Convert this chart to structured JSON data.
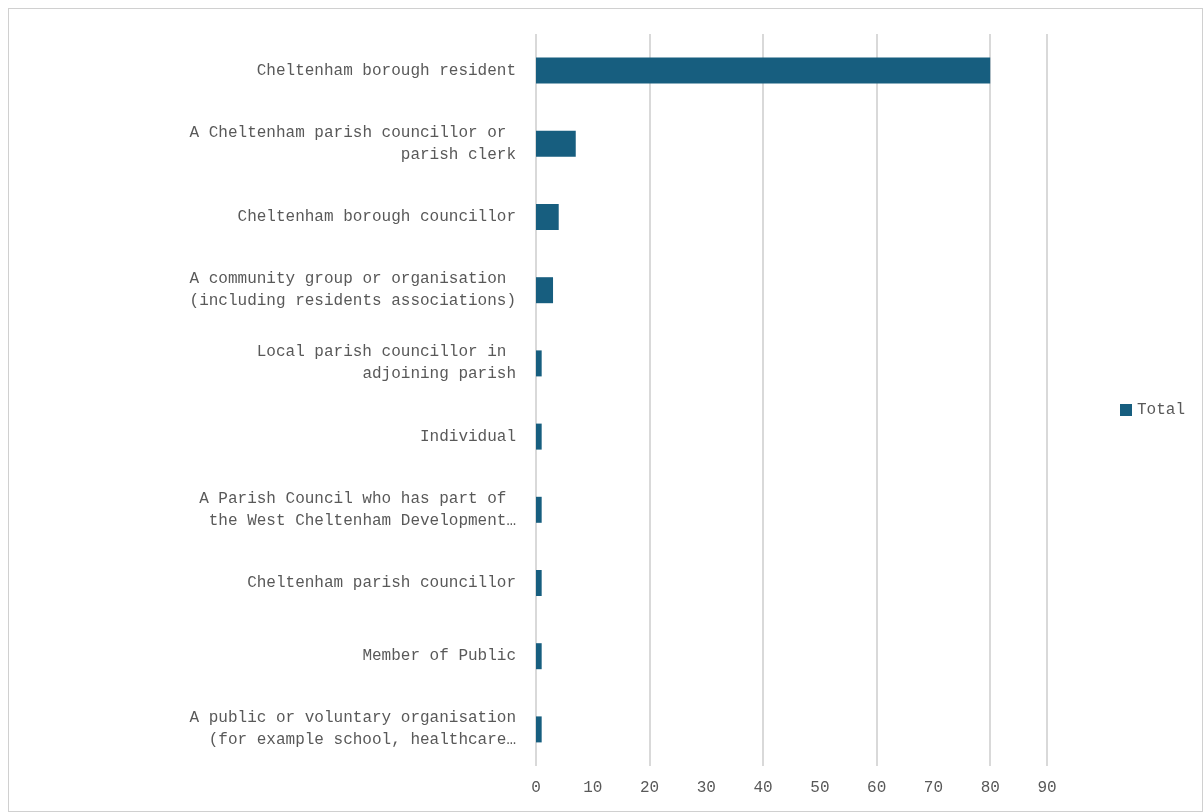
{
  "chart_data": {
    "type": "bar",
    "orientation": "horizontal",
    "categories": [
      "Cheltenham borough resident",
      "A Cheltenham parish councillor or parish clerk",
      "Cheltenham borough councillor",
      "A community group or organisation (including residents associations)",
      "Local parish councillor in adjoining parish",
      "Individual",
      "A Parish Council who has part of the West Cheltenham Development…",
      "Cheltenham parish councillor",
      "Member of Public",
      "A public or voluntary organisation (for example school, healthcare…"
    ],
    "series": [
      {
        "name": "Total",
        "color": "#175e7f",
        "values": [
          80,
          7,
          4,
          3,
          1,
          1,
          1,
          1,
          1,
          1
        ]
      }
    ],
    "xlim": [
      0,
      90
    ],
    "xticks": [
      0,
      10,
      20,
      30,
      40,
      50,
      60,
      70,
      80,
      90
    ],
    "grid": "x",
    "legend": "right"
  }
}
